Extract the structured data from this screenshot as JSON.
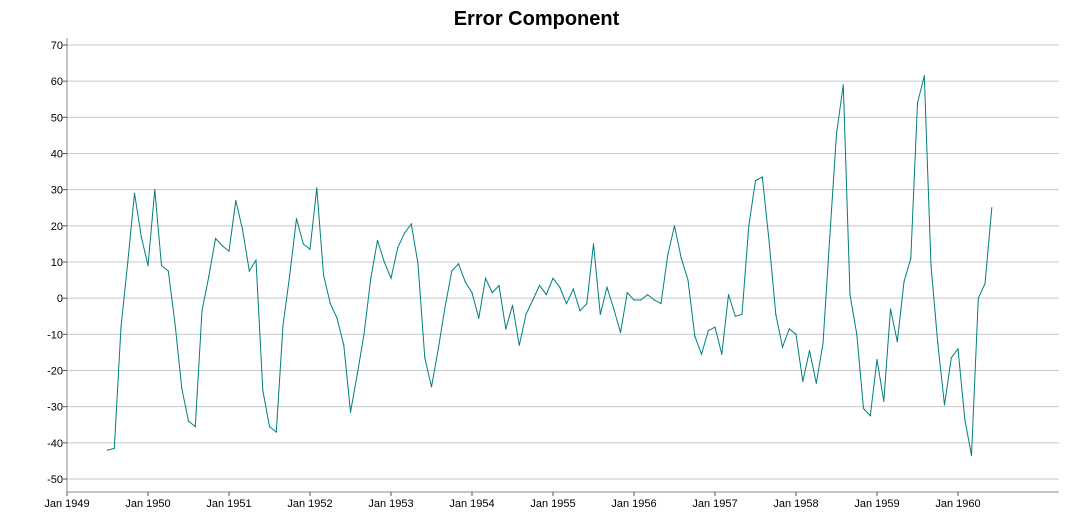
{
  "chart_data": {
    "type": "line",
    "title": "Error Component",
    "xlabel": "",
    "ylabel": "",
    "ylim": [
      -54,
      72
    ],
    "yticks": [
      70,
      60,
      50,
      40,
      30,
      20,
      10,
      0,
      -10,
      -20,
      -30,
      -40,
      -50
    ],
    "x_tick_labels": [
      "Jan 1949",
      "Jan 1950",
      "Jan 1951",
      "Jan 1952",
      "Jan 1953",
      "Jan 1954",
      "Jan 1955",
      "Jan 1956",
      "Jan 1957",
      "Jan 1958",
      "Jan 1959",
      "Jan 1960"
    ],
    "x_tick_index": [
      0,
      12,
      24,
      36,
      48,
      60,
      72,
      84,
      96,
      108,
      120,
      132
    ],
    "grid": true,
    "series_color": "#007f7f",
    "series": [
      {
        "start": "Jul 1949",
        "frequency": "monthly",
        "values": [
          -42,
          -41.5,
          -8,
          10,
          29,
          17,
          9,
          30,
          9,
          7.5,
          -7,
          -25,
          -34,
          -35.5,
          -3.5,
          6,
          16.5,
          14.5,
          13,
          27,
          19,
          7.5,
          10.5,
          -25.5,
          -35.5,
          -37,
          -7.5,
          6.5,
          22,
          15,
          13.5,
          30.5,
          6.5,
          -1.5,
          -5.5,
          -13,
          -31.5,
          -21,
          -10,
          5.5,
          16,
          10,
          5.5,
          14,
          18,
          20.5,
          9.5,
          -16.5,
          -24.5,
          -14,
          -2.5,
          7.5,
          9.5,
          4.5,
          1.5,
          -5.5,
          5.5,
          1.5,
          3.5,
          -8.5,
          -2,
          -13,
          -4.5,
          -0.5,
          3.5,
          1,
          5.5,
          3,
          -1.5,
          2.5,
          -3.5,
          -1.5,
          15,
          -4.5,
          3,
          -3,
          -9.5,
          1.5,
          -0.5,
          -0.5,
          1,
          -0.5,
          -1.5,
          12,
          20,
          11,
          5,
          -10.5,
          -15.5,
          -9,
          -8,
          -15.5,
          1,
          -5,
          -4.5,
          20,
          32.5,
          33.5,
          16,
          -4.5,
          -13.5,
          -8.5,
          -10,
          -23,
          -14.5,
          -23.5,
          -12.5,
          17,
          45.5,
          59,
          1,
          -10,
          -30.5,
          -32.5,
          -17,
          -28.5,
          -3,
          -12,
          4.5,
          11,
          54,
          61.5,
          9,
          -12.5,
          -29.5,
          -16.5,
          -14,
          -33.5,
          -43.5,
          0,
          4,
          25
        ]
      }
    ]
  }
}
